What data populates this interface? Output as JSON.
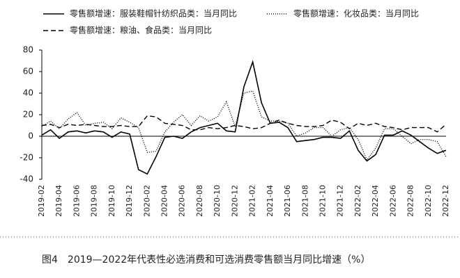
{
  "chart_data": {
    "type": "line",
    "caption": "图4　2019—2022年代表性必选消费和可选消费零售额当月同比增速（%）",
    "categories": [
      "2019-02",
      null,
      "2019-04",
      null,
      "2019-06",
      null,
      "2019-08",
      null,
      "2019-10",
      null,
      "2019-12",
      null,
      "2020-02",
      null,
      "2020-04",
      null,
      "2020-06",
      null,
      "2020-08",
      null,
      "2020-10",
      null,
      "2020-12",
      null,
      "2021-02",
      null,
      "2021-04",
      null,
      "2021-06",
      null,
      "2021-08",
      null,
      "2021-10",
      null,
      "2021-12",
      null,
      "2022-02",
      null,
      "2022-04",
      null,
      "2022-06",
      null,
      "2022-08",
      null,
      "2022-10",
      null,
      "2022-12"
    ],
    "series": [
      {
        "name": "零售额增速：服装鞋帽针纺织品类：当月同比",
        "color": "#000000",
        "dash": "solid",
        "values": [
          1,
          6,
          -2,
          4,
          5,
          3,
          5,
          4,
          -1,
          4,
          2,
          -31,
          -35,
          -19,
          -1,
          0,
          -2,
          4,
          8,
          10,
          12,
          5,
          4,
          46,
          69,
          31,
          12,
          13,
          8,
          -5,
          -4,
          -3,
          -1,
          -1,
          -2,
          5,
          -13,
          -23,
          -17,
          1,
          1,
          5,
          1,
          -5,
          -11,
          -16,
          -13
        ]
      },
      {
        "name": "零售额增速：化妆品类：当月同比",
        "color": "#000000",
        "dash": "dotted",
        "values": [
          9,
          14,
          7,
          16,
          22,
          10,
          12,
          13,
          7,
          17,
          13,
          8,
          -15,
          -14,
          4,
          13,
          20,
          10,
          19,
          14,
          18,
          32,
          9,
          40,
          42,
          18,
          14,
          14,
          12,
          0,
          3,
          8,
          8,
          0,
          6,
          8,
          -3,
          -22,
          -11,
          7,
          7,
          0,
          -7,
          -3,
          -3,
          -5,
          -19
        ]
      },
      {
        "name": "零售额增速：粮油、食品类：当月同比",
        "color": "#000000",
        "dash": "dashed",
        "values": [
          10,
          11,
          8,
          11,
          10,
          11,
          10,
          9,
          9,
          10,
          9,
          9,
          19,
          18,
          12,
          11,
          10,
          6,
          6,
          8,
          7,
          8,
          10,
          9,
          7,
          8,
          12,
          15,
          12,
          10,
          9,
          9,
          10,
          15,
          13,
          7,
          12,
          10,
          12,
          9,
          8,
          6,
          8,
          8,
          8,
          4,
          11
        ]
      }
    ],
    "ylim": [
      -40,
      80
    ],
    "yticks": [
      -40,
      -20,
      0,
      20,
      40,
      60,
      80
    ]
  }
}
